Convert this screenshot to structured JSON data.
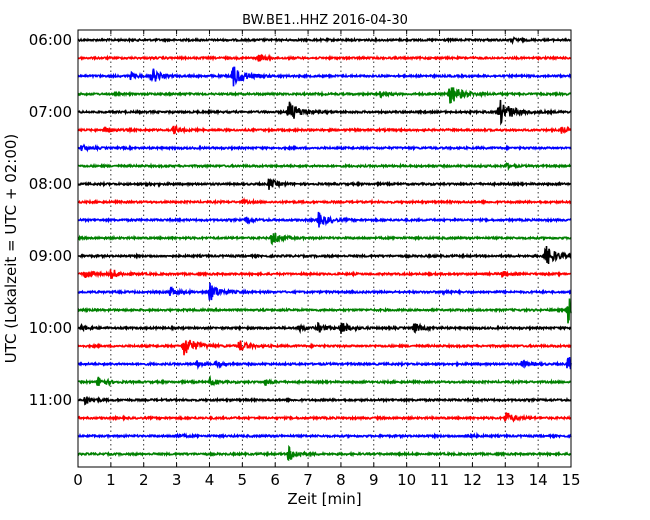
{
  "chart_data": {
    "type": "line",
    "title": "BW.BE1..HHZ 2016-04-30",
    "xlabel": "Zeit  [min]",
    "ylabel": "UTC (Lokalzeit = UTC + 02:00)",
    "xlim": [
      0,
      15
    ],
    "x_ticks": [
      0,
      1,
      2,
      3,
      4,
      5,
      6,
      7,
      8,
      9,
      10,
      11,
      12,
      13,
      14,
      15
    ],
    "y_tick_labels": [
      "06:00",
      "07:00",
      "08:00",
      "09:00",
      "10:00",
      "11:00"
    ],
    "y_tick_rows": [
      0,
      4,
      8,
      12,
      16,
      20
    ],
    "grid": true,
    "grid_axis": "x",
    "trace_colors": [
      "#000000",
      "#ff0000",
      "#0000ff",
      "#008000"
    ],
    "traces": [
      {
        "start": "06:00",
        "events": [
          {
            "t": 13.2,
            "a": 0.2
          }
        ]
      },
      {
        "start": "06:15",
        "events": [
          {
            "t": 5.5,
            "a": 0.35
          }
        ]
      },
      {
        "start": "06:30",
        "events": [
          {
            "t": 1.6,
            "a": 0.3
          },
          {
            "t": 2.2,
            "a": 0.35
          },
          {
            "t": 2.3,
            "a": 0.4
          },
          {
            "t": 4.7,
            "a": 1.0
          }
        ]
      },
      {
        "start": "06:45",
        "events": [
          {
            "t": 9.2,
            "a": 0.25
          },
          {
            "t": 11.3,
            "a": 1.0
          }
        ]
      },
      {
        "start": "07:00",
        "events": [
          {
            "t": 6.4,
            "a": 1.0
          },
          {
            "t": 12.8,
            "a": 1.2
          }
        ]
      },
      {
        "start": "07:15",
        "events": [
          {
            "t": 0.8,
            "a": 0.35
          },
          {
            "t": 2.9,
            "a": 0.35
          },
          {
            "t": 14.7,
            "a": 0.3
          }
        ]
      },
      {
        "start": "07:30",
        "events": [
          {
            "t": 0.1,
            "a": 0.3
          }
        ]
      },
      {
        "start": "07:45",
        "events": [
          {
            "t": 13.0,
            "a": 0.25
          }
        ]
      },
      {
        "start": "08:00",
        "events": [
          {
            "t": 2.1,
            "a": 0.15
          },
          {
            "t": 5.8,
            "a": 0.5
          }
        ]
      },
      {
        "start": "08:15",
        "events": [
          {
            "t": 5.0,
            "a": 0.15
          }
        ]
      },
      {
        "start": "08:30",
        "events": [
          {
            "t": 5.1,
            "a": 0.3
          },
          {
            "t": 7.3,
            "a": 0.7
          }
        ]
      },
      {
        "start": "08:45",
        "events": [
          {
            "t": 5.9,
            "a": 0.65
          }
        ]
      },
      {
        "start": "09:00",
        "events": [
          {
            "t": 14.2,
            "a": 1.0
          }
        ]
      },
      {
        "start": "09:15",
        "events": [
          {
            "t": 0.2,
            "a": 0.45
          },
          {
            "t": 1.0,
            "a": 0.5
          },
          {
            "t": 12.9,
            "a": 0.25
          }
        ]
      },
      {
        "start": "09:30",
        "events": [
          {
            "t": 2.8,
            "a": 0.45
          },
          {
            "t": 4.0,
            "a": 0.85
          },
          {
            "t": 11.1,
            "a": 0.2
          }
        ]
      },
      {
        "start": "09:45",
        "events": [
          {
            "t": 14.9,
            "a": 1.3
          }
        ]
      },
      {
        "start": "10:00",
        "events": [
          {
            "t": 0.1,
            "a": 0.3
          },
          {
            "t": 6.7,
            "a": 0.35
          },
          {
            "t": 7.3,
            "a": 0.4
          },
          {
            "t": 8.0,
            "a": 0.6
          },
          {
            "t": 10.2,
            "a": 0.5
          }
        ]
      },
      {
        "start": "10:15",
        "events": [
          {
            "t": 3.2,
            "a": 1.0
          },
          {
            "t": 4.9,
            "a": 0.55
          }
        ]
      },
      {
        "start": "10:30",
        "events": [
          {
            "t": 3.6,
            "a": 0.3
          },
          {
            "t": 4.2,
            "a": 0.3
          },
          {
            "t": 13.5,
            "a": 0.35
          },
          {
            "t": 14.9,
            "a": 0.7
          }
        ]
      },
      {
        "start": "10:45",
        "events": [
          {
            "t": 0.6,
            "a": 0.5
          },
          {
            "t": 4.0,
            "a": 0.35
          },
          {
            "t": 5.7,
            "a": 0.25
          }
        ]
      },
      {
        "start": "11:00",
        "events": [
          {
            "t": 0.2,
            "a": 0.4
          }
        ]
      },
      {
        "start": "11:15",
        "events": [
          {
            "t": 13.0,
            "a": 0.6
          }
        ]
      },
      {
        "start": "11:30",
        "events": [
          {
            "t": 3.0,
            "a": 0.2
          },
          {
            "t": 11.8,
            "a": 0.25
          }
        ]
      },
      {
        "start": "11:45",
        "events": [
          {
            "t": 6.4,
            "a": 0.65
          }
        ]
      }
    ]
  }
}
